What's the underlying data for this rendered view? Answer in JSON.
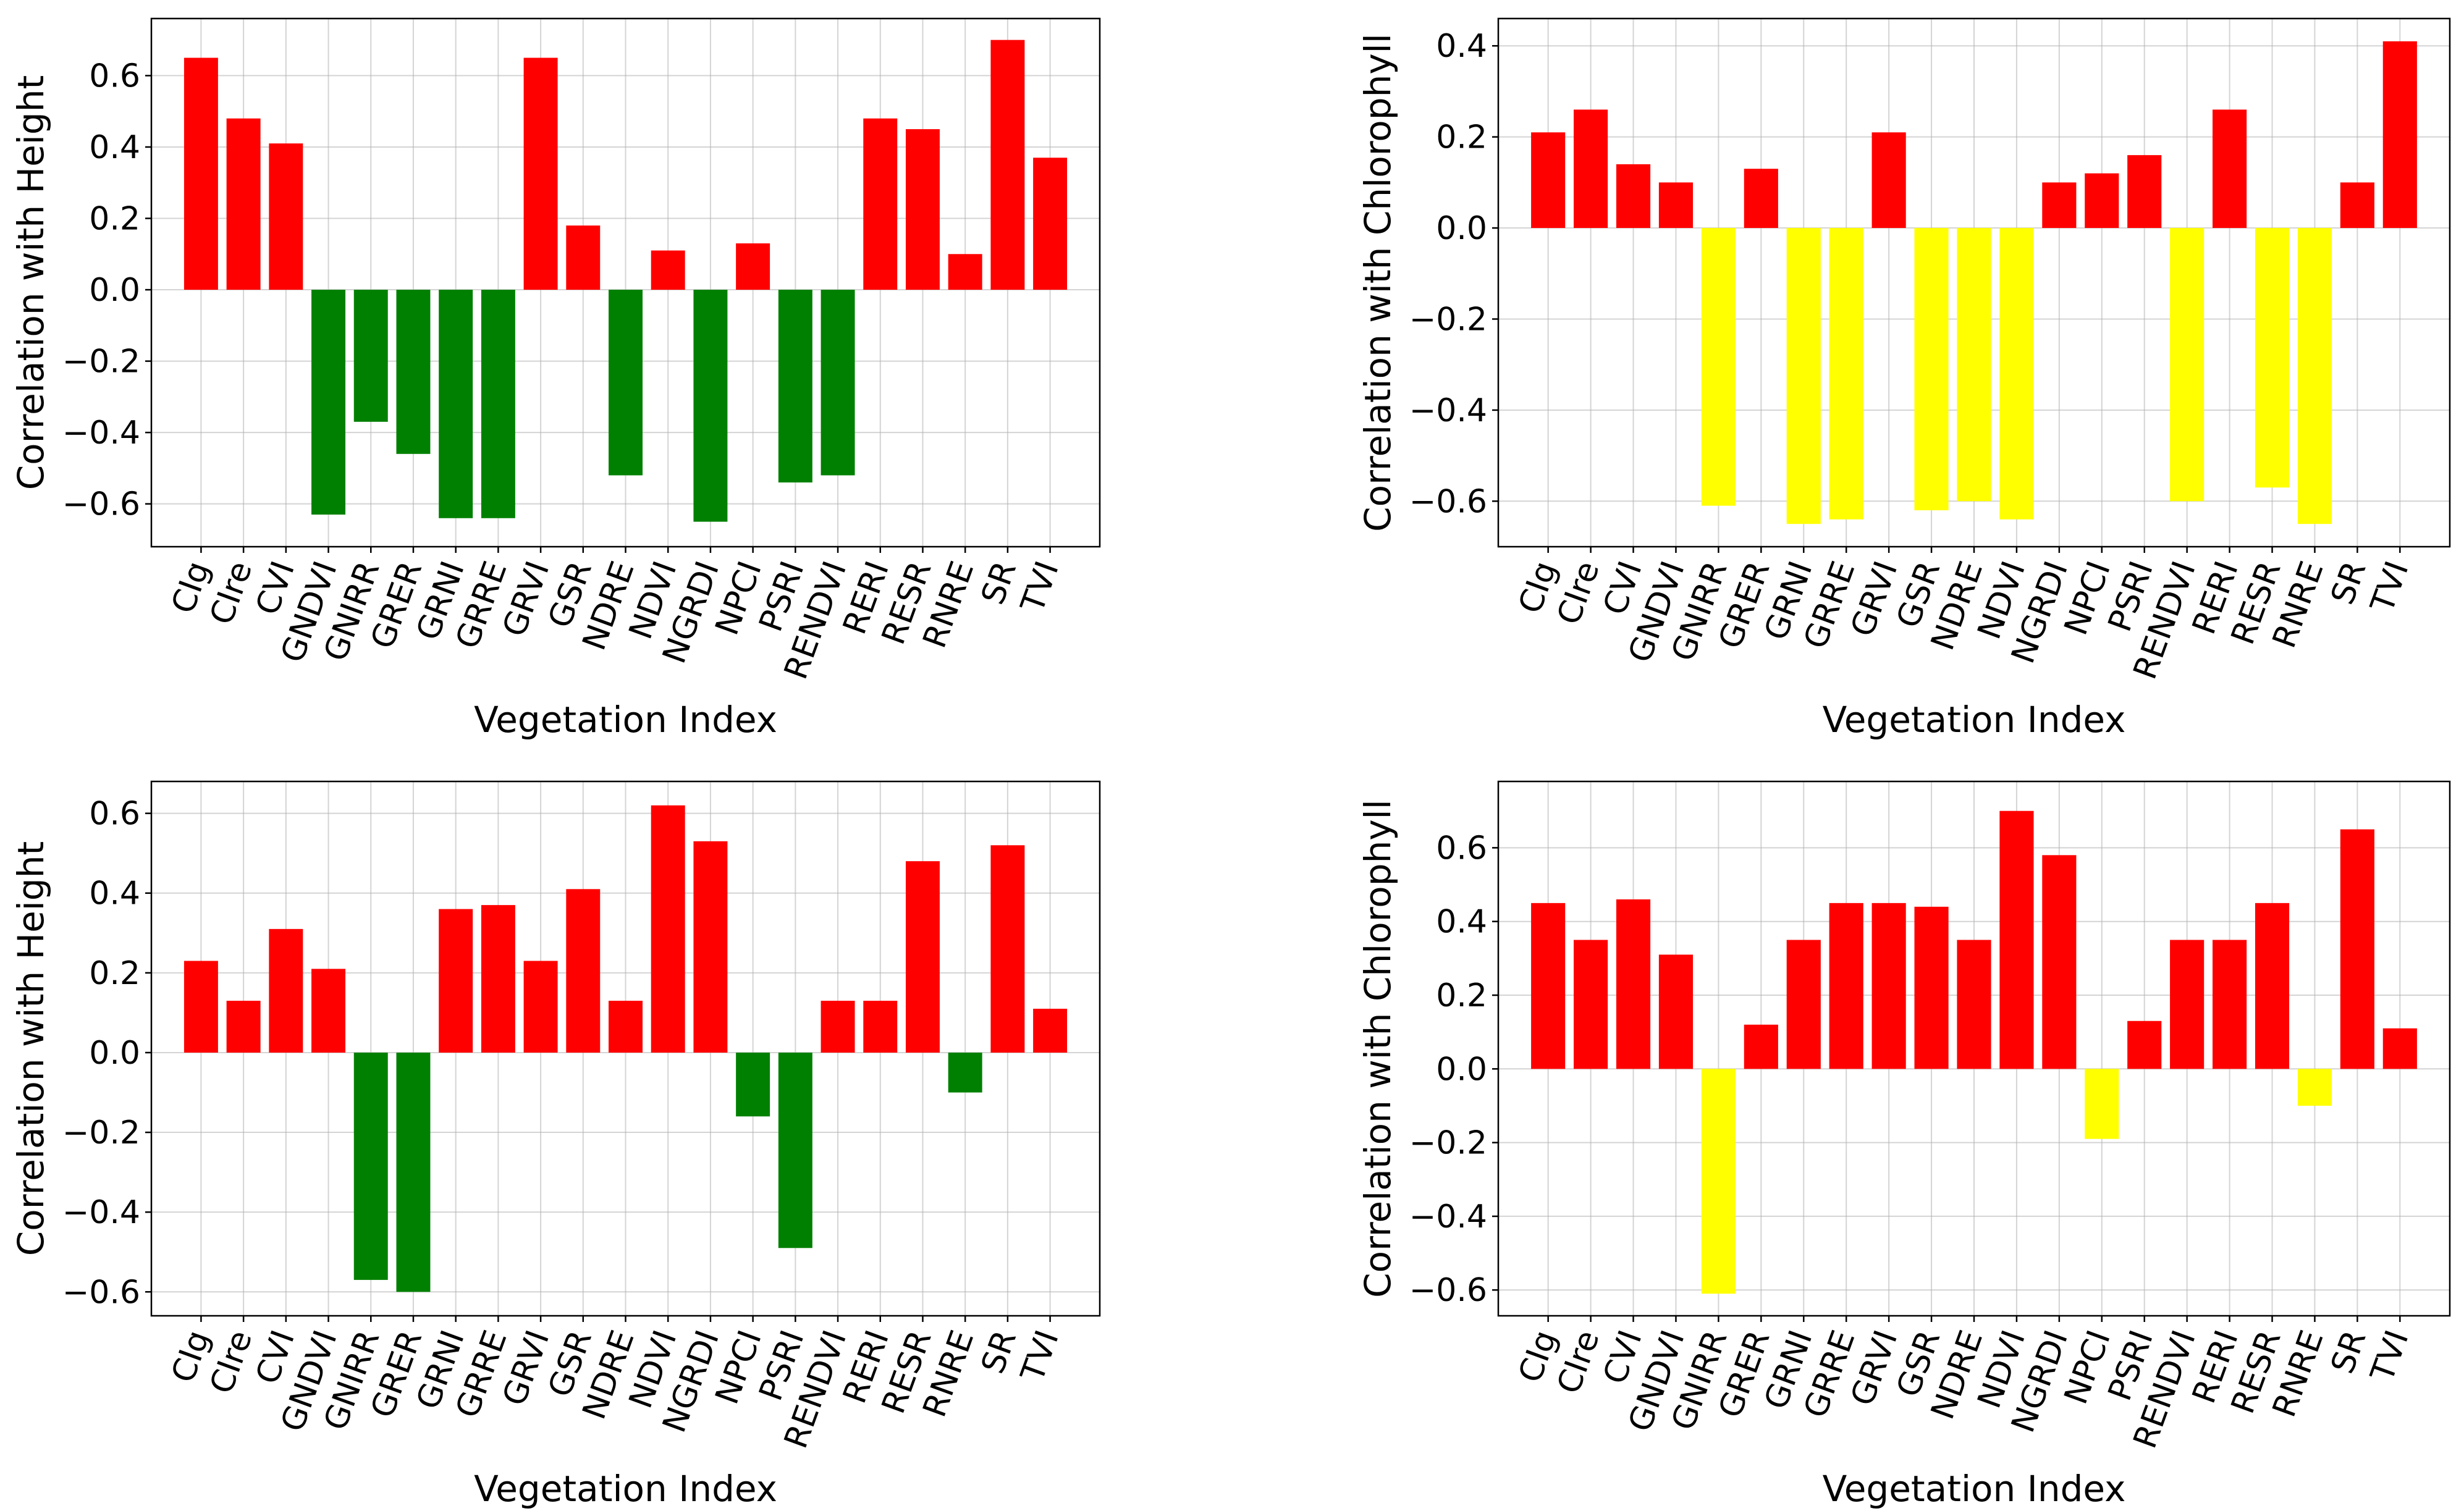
{
  "colors": {
    "positive_left": "#ff0000",
    "negative_left": "#008000",
    "positive_right": "#ff0000",
    "negative_right": "#ffff00"
  },
  "chart_data": [
    {
      "type": "bar",
      "xlabel": "Vegetation Index",
      "ylabel": "Correlation with Height",
      "ylim": [
        -0.72,
        0.76
      ],
      "yticks": [
        -0.6,
        -0.4,
        -0.2,
        0.0,
        0.2,
        0.4,
        0.6
      ],
      "yticklabels": [
        "−0.6",
        "−0.4",
        "−0.2",
        "0.0",
        "0.2",
        "0.4",
        "0.6"
      ],
      "grid": true,
      "categories": [
        "CIg",
        "CIre",
        "CVI",
        "GNDVI",
        "GNIRR",
        "GRER",
        "GRNI",
        "GRRE",
        "GRVI",
        "GSR",
        "NDRE",
        "NDVI",
        "NGRDI",
        "NPCI",
        "PSRI",
        "RENDVI",
        "RERI",
        "RESR",
        "RNRE",
        "SR",
        "TVI"
      ],
      "values": [
        0.65,
        0.48,
        0.41,
        -0.63,
        -0.37,
        -0.46,
        -0.64,
        -0.64,
        0.65,
        0.18,
        -0.52,
        0.11,
        -0.65,
        0.13,
        -0.54,
        -0.52,
        0.48,
        0.45,
        0.1,
        0.7,
        0.37
      ],
      "positive_color": "#ff0000",
      "negative_color": "#008000"
    },
    {
      "type": "bar",
      "xlabel": "Vegetation Index",
      "ylabel": "Correlation with Chlorophyll",
      "ylim": [
        -0.7,
        0.46
      ],
      "yticks": [
        -0.6,
        -0.4,
        -0.2,
        0.0,
        0.2,
        0.4
      ],
      "yticklabels": [
        "−0.6",
        "−0.4",
        "−0.2",
        "0.0",
        "0.2",
        "0.4"
      ],
      "grid": true,
      "categories": [
        "CIg",
        "CIre",
        "CVI",
        "GNDVI",
        "GNIRR",
        "GRER",
        "GRNI",
        "GRRE",
        "GRVI",
        "GSR",
        "NDRE",
        "NDVI",
        "NGRDI",
        "NPCI",
        "PSRI",
        "RENDVI",
        "RERI",
        "RESR",
        "RNRE",
        "SR",
        "TVI"
      ],
      "values": [
        0.21,
        0.26,
        0.14,
        0.1,
        -0.61,
        0.13,
        -0.65,
        -0.64,
        0.21,
        -0.62,
        -0.6,
        -0.64,
        0.1,
        0.12,
        0.16,
        -0.6,
        0.26,
        -0.57,
        -0.65,
        0.1,
        0.41
      ],
      "positive_color": "#ff0000",
      "negative_color": "#ffff00"
    },
    {
      "type": "bar",
      "xlabel": "Vegetation Index",
      "ylabel": "Correlation with Height",
      "ylim": [
        -0.66,
        0.68
      ],
      "yticks": [
        -0.6,
        -0.4,
        -0.2,
        0.0,
        0.2,
        0.4,
        0.6
      ],
      "yticklabels": [
        "−0.6",
        "−0.4",
        "−0.2",
        "0.0",
        "0.2",
        "0.4",
        "0.6"
      ],
      "grid": true,
      "categories": [
        "CIg",
        "CIre",
        "CVI",
        "GNDVI",
        "GNIRR",
        "GRER",
        "GRNI",
        "GRRE",
        "GRVI",
        "GSR",
        "NDRE",
        "NDVI",
        "NGRDI",
        "NPCI",
        "PSRI",
        "RENDVI",
        "RERI",
        "RESR",
        "RNRE",
        "SR",
        "TVI"
      ],
      "values": [
        0.23,
        0.13,
        0.31,
        0.21,
        -0.57,
        -0.6,
        0.36,
        0.37,
        0.23,
        0.41,
        0.13,
        0.62,
        0.53,
        -0.16,
        -0.49,
        0.13,
        0.13,
        0.48,
        -0.1,
        0.52,
        0.11
      ],
      "positive_color": "#ff0000",
      "negative_color": "#008000"
    },
    {
      "type": "bar",
      "xlabel": "Vegetation Index",
      "ylabel": "Correlation with Chlorophyll",
      "ylim": [
        -0.67,
        0.78
      ],
      "yticks": [
        -0.6,
        -0.4,
        -0.2,
        0.0,
        0.2,
        0.4,
        0.6
      ],
      "yticklabels": [
        "−0.6",
        "−0.4",
        "−0.2",
        "0.0",
        "0.2",
        "0.4",
        "0.6"
      ],
      "grid": true,
      "categories": [
        "CIg",
        "CIre",
        "CVI",
        "GNDVI",
        "GNIRR",
        "GRER",
        "GRNI",
        "GRRE",
        "GRVI",
        "GSR",
        "NDRE",
        "NDVI",
        "NGRDI",
        "NPCI",
        "PSRI",
        "RENDVI",
        "RERI",
        "RESR",
        "RNRE",
        "SR",
        "TVI"
      ],
      "values": [
        0.45,
        0.35,
        0.46,
        0.31,
        -0.61,
        0.12,
        0.35,
        0.45,
        0.45,
        0.44,
        0.35,
        0.7,
        0.58,
        -0.19,
        0.13,
        0.35,
        0.35,
        0.45,
        -0.1,
        0.65,
        0.11
      ],
      "positive_color": "#ff0000",
      "negative_color": "#ffff00"
    }
  ]
}
